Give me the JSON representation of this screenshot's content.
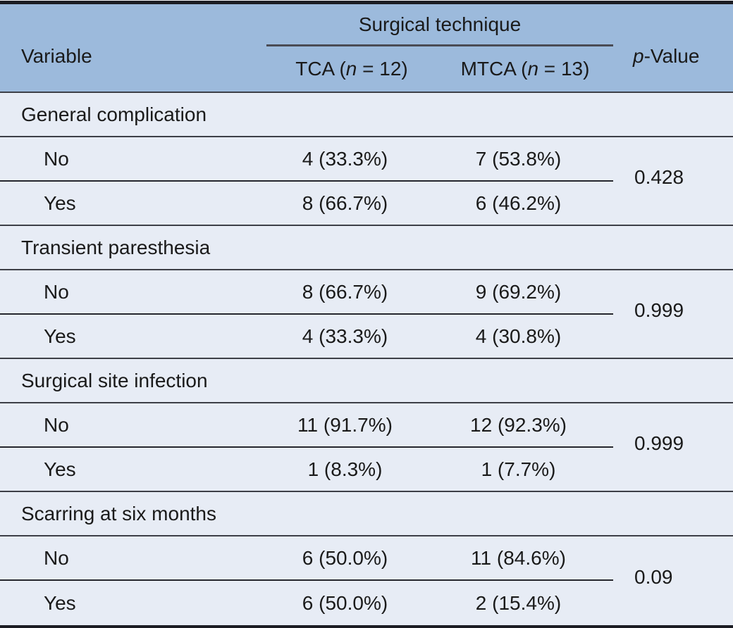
{
  "colors": {
    "header_bg": "#9cbadc",
    "body_bg": "#e7ecf5",
    "border_dark": "#1b1c23",
    "rule_line": "#3d3f47"
  },
  "table": {
    "header": {
      "variable": "Variable",
      "spanner": "Surgical technique",
      "tca": {
        "prefix": "TCA (",
        "italic": "n",
        "suffix": " = 12)"
      },
      "mtca": {
        "prefix": "MTCA (",
        "italic": "n",
        "suffix": " = 13)"
      },
      "pvalue": {
        "italic": "p",
        "suffix": "-Value"
      }
    },
    "sections": [
      {
        "label": "General complication",
        "p": "0.428",
        "rows": [
          {
            "label": "No",
            "tca": "4 (33.3%)",
            "mtca": "7 (53.8%)"
          },
          {
            "label": "Yes",
            "tca": "8 (66.7%)",
            "mtca": "6 (46.2%)"
          }
        ]
      },
      {
        "label": "Transient paresthesia",
        "p": "0.999",
        "rows": [
          {
            "label": "No",
            "tca": "8 (66.7%)",
            "mtca": "9 (69.2%)"
          },
          {
            "label": "Yes",
            "tca": "4 (33.3%)",
            "mtca": "4 (30.8%)"
          }
        ]
      },
      {
        "label": "Surgical site infection",
        "p": "0.999",
        "rows": [
          {
            "label": "No",
            "tca": "11 (91.7%)",
            "mtca": "12 (92.3%)"
          },
          {
            "label": "Yes",
            "tca": "1 (8.3%)",
            "mtca": "1 (7.7%)"
          }
        ]
      },
      {
        "label": "Scarring at six months",
        "p": "0.09",
        "rows": [
          {
            "label": "No",
            "tca": "6 (50.0%)",
            "mtca": "11 (84.6%)"
          },
          {
            "label": "Yes",
            "tca": "6 (50.0%)",
            "mtca": "2 (15.4%)"
          }
        ]
      }
    ]
  }
}
